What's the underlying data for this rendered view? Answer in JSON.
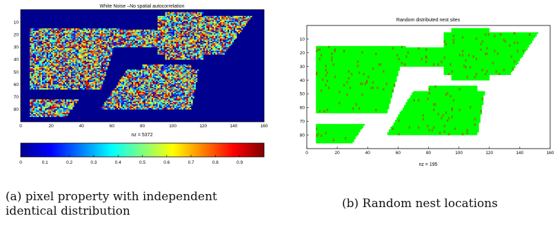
{
  "captions": {
    "a": "(a) pixel property with independent identical distribution",
    "b": "(b) Random nest locations"
  },
  "chart_data": [
    {
      "type": "heatmap",
      "title": "White Noise –No spatial autocorrelation",
      "xlabel": "nz = 5372",
      "ylabel": "",
      "xlim": [
        0,
        160
      ],
      "ylim": [
        0,
        90
      ],
      "y_reversed": true,
      "x_ticks": [
        0,
        20,
        40,
        60,
        80,
        100,
        120,
        140,
        160
      ],
      "y_ticks": [
        10,
        20,
        30,
        40,
        50,
        60,
        70,
        80
      ],
      "nonzero_count": 5372,
      "background_value": 0,
      "background_color": "#00008f",
      "grid": false,
      "colorbar": {
        "orientation": "horizontal",
        "range": [
          0,
          1
        ],
        "ticks": [
          "0",
          "0.1",
          "0.2",
          "0.3",
          "0.4",
          "0.5",
          "0.6",
          "0.7",
          "0.8",
          "0.9"
        ]
      }
    },
    {
      "type": "scatter",
      "title": "Random distributed nest sites",
      "xlabel": "nz = 195",
      "ylabel": "",
      "xlim": [
        0,
        160
      ],
      "ylim": [
        0,
        90
      ],
      "y_reversed": true,
      "x_ticks": [
        0,
        20,
        40,
        60,
        80,
        100,
        120,
        140,
        160
      ],
      "y_ticks": [
        10,
        20,
        30,
        40,
        50,
        60,
        70,
        80
      ],
      "nonzero_count": 195,
      "region_color": "#00ff00",
      "marker_color": "#ff0000",
      "marker": "x",
      "grid": false
    }
  ]
}
